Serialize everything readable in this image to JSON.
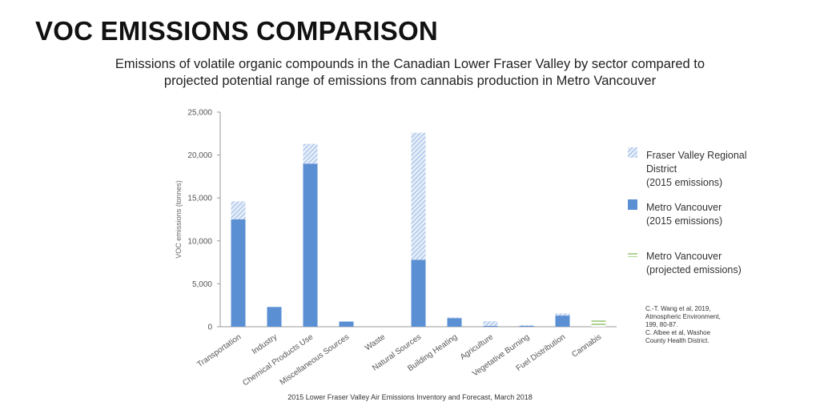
{
  "title": "VOC EMISSIONS COMPARISON",
  "subtitle_line1": "Emissions of volatile organic compounds in the Canadian Lower Fraser Valley by sector compared to",
  "subtitle_line2": "projected potential range of emissions from cannabis production in Metro Vancouver",
  "colors": {
    "metro": "#5b8fd4",
    "fraser_hatch": "#9fbce6",
    "projected": "#9cc97a"
  },
  "chart_data": {
    "type": "bar",
    "stacked": true,
    "ylabel": "VOC emissions (tonnes)",
    "ylim": [
      0,
      25000
    ],
    "yticks": [
      "0",
      "5,000",
      "10,000",
      "15,000",
      "20,000",
      "25,000"
    ],
    "ytick_values": [
      0,
      5000,
      10000,
      15000,
      20000,
      25000
    ],
    "categories": [
      "Transportation",
      "Industry",
      "Chemical Products Use",
      "Miscellaneous Sources",
      "Waste",
      "Natural Sources",
      "Building Heating",
      "Agriculture",
      "Vegetative Burning",
      "Fuel Distribution",
      "Cannabis"
    ],
    "series": [
      {
        "name": "Metro Vancouver (2015 emissions)",
        "key": "metro",
        "values": [
          12500,
          2300,
          19000,
          600,
          0,
          7800,
          1000,
          100,
          100,
          1300,
          0
        ]
      },
      {
        "name": "Fraser Valley Regional District (2015 emissions)",
        "key": "fraser",
        "values": [
          2100,
          0,
          2300,
          0,
          0,
          14800,
          100,
          550,
          100,
          250,
          0
        ]
      },
      {
        "name": "Metro Vancouver (projected emissions)",
        "key": "projected",
        "values": [
          0,
          0,
          0,
          0,
          0,
          0,
          0,
          0,
          0,
          0,
          900
        ]
      }
    ],
    "legend_position": "right",
    "grid": false
  },
  "legend": [
    {
      "lines": [
        "Fraser Valley Regional",
        "District",
        "(2015 emissions)"
      ],
      "key": "fraser"
    },
    {
      "lines": [
        "Metro Vancouver",
        "(2015 emissions)"
      ],
      "key": "metro"
    },
    {
      "lines": [
        "Metro Vancouver",
        "(projected emissions)"
      ],
      "key": "projected"
    }
  ],
  "citation": {
    "lines": [
      "C.-T. Wang et al, 2019,",
      "Atmospheric Environment,",
      "199, 80-87.",
      "C. Albee et al, Washoe",
      "County Health District."
    ]
  },
  "source": "2015 Lower Fraser Valley Air Emissions Inventory and Forecast, March 2018"
}
